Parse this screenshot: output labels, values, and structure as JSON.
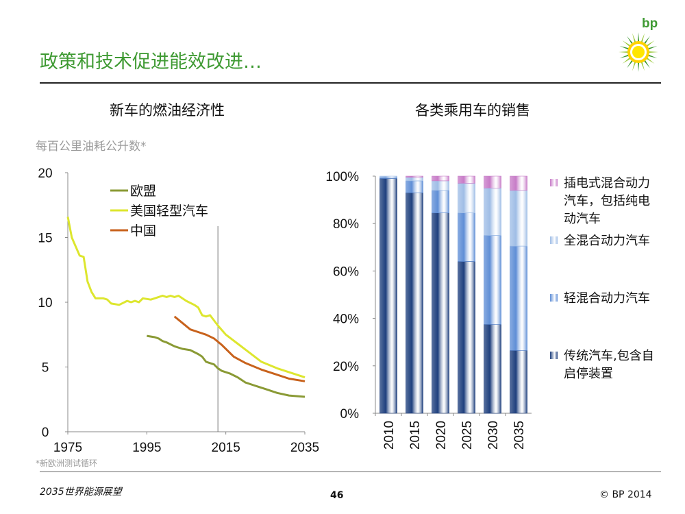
{
  "slide": {
    "title": "政策和技术促进能效改进…",
    "footer_title": "2035世界能源展望",
    "page_number": "46",
    "copyright": "© BP 2014",
    "logo_text": "bp"
  },
  "colors": {
    "brand_green": "#3f9a33",
    "eu": "#8a9a35",
    "us": "#dde62e",
    "china": "#c8621c",
    "conventional": "#1e3f7d",
    "mild_hybrid": "#5f8ed6",
    "full_hybrid": "#9fbde6",
    "phev": "#c77bc7"
  },
  "chart_data": [
    {
      "type": "line",
      "title": "新车的燃油经济性",
      "ylabel": "每百公里油耗公升数*",
      "footnote": "*新欧洲测试循环",
      "xlim": [
        1975,
        2035
      ],
      "ylim": [
        0,
        20
      ],
      "xticks": [
        "1975",
        "1995",
        "2015",
        "2035"
      ],
      "yticks": [
        "0",
        "5",
        "10",
        "15",
        "20"
      ],
      "divider_year": 2013,
      "series": [
        {
          "name": "欧盟",
          "color_key": "eu",
          "points": [
            [
              1995,
              7.4
            ],
            [
              1997,
              7.3
            ],
            [
              1998,
              7.2
            ],
            [
              1999,
              7.0
            ],
            [
              2000,
              6.9
            ],
            [
              2002,
              6.6
            ],
            [
              2004,
              6.4
            ],
            [
              2006,
              6.3
            ],
            [
              2008,
              6.0
            ],
            [
              2009,
              5.8
            ],
            [
              2010,
              5.4
            ],
            [
              2012,
              5.2
            ],
            [
              2013,
              4.9
            ],
            [
              2014,
              4.7
            ],
            [
              2016,
              4.5
            ],
            [
              2018,
              4.2
            ],
            [
              2020,
              3.8
            ],
            [
              2022,
              3.6
            ],
            [
              2025,
              3.3
            ],
            [
              2028,
              3.0
            ],
            [
              2031,
              2.8
            ],
            [
              2035,
              2.7
            ]
          ]
        },
        {
          "name": "美国轻型汽车",
          "color_key": "us",
          "points": [
            [
              1975,
              16.6
            ],
            [
              1976,
              15.0
            ],
            [
              1977,
              14.3
            ],
            [
              1978,
              13.6
            ],
            [
              1979,
              13.5
            ],
            [
              1980,
              11.6
            ],
            [
              1981,
              10.8
            ],
            [
              1982,
              10.3
            ],
            [
              1984,
              10.3
            ],
            [
              1985,
              10.2
            ],
            [
              1986,
              9.9
            ],
            [
              1988,
              9.8
            ],
            [
              1990,
              10.1
            ],
            [
              1991,
              10.0
            ],
            [
              1992,
              10.1
            ],
            [
              1993,
              10.0
            ],
            [
              1994,
              10.3
            ],
            [
              1996,
              10.2
            ],
            [
              1998,
              10.4
            ],
            [
              1999,
              10.5
            ],
            [
              2000,
              10.4
            ],
            [
              2001,
              10.5
            ],
            [
              2002,
              10.4
            ],
            [
              2003,
              10.5
            ],
            [
              2004,
              10.3
            ],
            [
              2005,
              10.1
            ],
            [
              2007,
              9.8
            ],
            [
              2008,
              9.6
            ],
            [
              2009,
              9.0
            ],
            [
              2010,
              8.9
            ],
            [
              2011,
              9.0
            ],
            [
              2012,
              8.6
            ],
            [
              2013,
              8.2
            ],
            [
              2015,
              7.5
            ],
            [
              2018,
              6.8
            ],
            [
              2021,
              6.1
            ],
            [
              2024,
              5.4
            ],
            [
              2028,
              4.9
            ],
            [
              2032,
              4.5
            ],
            [
              2035,
              4.2
            ]
          ]
        },
        {
          "name": "中国",
          "color_key": "china",
          "points": [
            [
              2002,
              8.9
            ],
            [
              2004,
              8.4
            ],
            [
              2006,
              7.9
            ],
            [
              2008,
              7.7
            ],
            [
              2010,
              7.5
            ],
            [
              2012,
              7.2
            ],
            [
              2014,
              6.7
            ],
            [
              2017,
              5.8
            ],
            [
              2020,
              5.3
            ],
            [
              2024,
              4.8
            ],
            [
              2028,
              4.4
            ],
            [
              2031,
              4.1
            ],
            [
              2035,
              3.9
            ]
          ]
        }
      ]
    },
    {
      "type": "bar",
      "stacked": true,
      "title": "各类乘用车的销售",
      "categories": [
        "2010",
        "2015",
        "2020",
        "2025",
        "2030",
        "2035"
      ],
      "ylim": [
        0,
        100
      ],
      "yticks": [
        "0%",
        "20%",
        "40%",
        "60%",
        "80%",
        "100%"
      ],
      "series": [
        {
          "name": "传统汽车,包含自启停装置",
          "color_key": "conventional",
          "values": [
            99,
            93,
            84.5,
            64,
            37.5,
            26.5
          ]
        },
        {
          "name": "轻混合动力汽车",
          "color_key": "mild_hybrid",
          "values": [
            0.5,
            5,
            9.5,
            20.5,
            37.5,
            44
          ]
        },
        {
          "name": "全混合动力汽车",
          "color_key": "full_hybrid",
          "values": [
            0.5,
            1.5,
            4,
            12.5,
            20,
            23.5
          ]
        },
        {
          "name": "插电式混合动力汽车，包括纯电动汽车",
          "color_key": "phev",
          "values": [
            0,
            0.5,
            2,
            3,
            5,
            6
          ]
        }
      ],
      "legend": [
        {
          "color_key": "phev",
          "label": "插电式混合动力\n汽车，包括纯电\n动汽车"
        },
        {
          "color_key": "full_hybrid",
          "label": "全混合动力汽车"
        },
        {
          "color_key": "mild_hybrid",
          "label": "轻混合动力汽车"
        },
        {
          "color_key": "conventional",
          "label": "传统汽车,包含自\n启停装置"
        }
      ]
    }
  ]
}
